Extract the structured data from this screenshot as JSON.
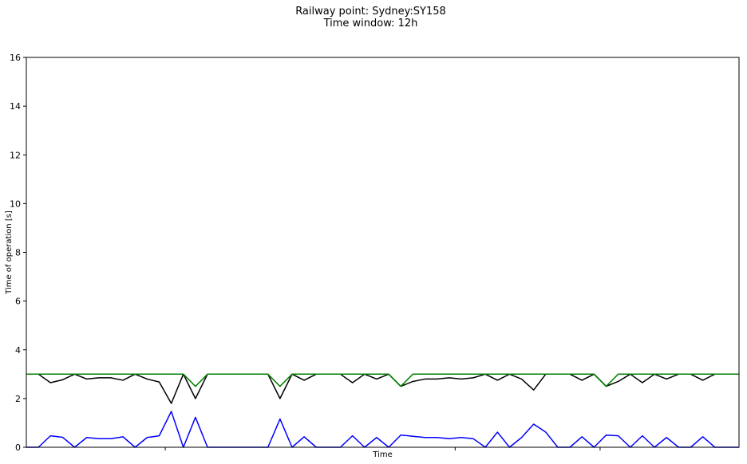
{
  "chart_data": {
    "type": "line",
    "title_lines": [
      "Railway point: Sydney:SY158",
      "Time window: 12h"
    ],
    "xlabel": "Time",
    "ylabel": "Time of operation [s]",
    "ylim": [
      0,
      16
    ],
    "yticks": [
      0,
      2,
      4,
      6,
      8,
      10,
      12,
      14,
      16
    ],
    "xlim": [
      0,
      59
    ],
    "xticks_unlabeled": [
      11.5,
      35.5,
      47.5
    ],
    "grid": false,
    "legend": "none",
    "x": [
      0,
      1,
      2,
      3,
      4,
      5,
      6,
      7,
      8,
      9,
      10,
      11,
      12,
      13,
      14,
      15,
      16,
      17,
      18,
      19,
      20,
      21,
      22,
      23,
      24,
      25,
      26,
      27,
      28,
      29,
      30,
      31,
      32,
      33,
      34,
      35,
      36,
      37,
      38,
      39,
      40,
      41,
      42,
      43,
      44,
      45,
      46,
      47,
      48,
      49,
      50,
      51,
      52,
      53,
      54,
      55,
      56,
      57,
      58,
      59
    ],
    "series": [
      {
        "color": "#000000",
        "values": [
          3.0,
          3.0,
          2.65,
          2.77,
          3.0,
          2.8,
          2.85,
          2.85,
          2.75,
          3.0,
          2.8,
          2.68,
          1.8,
          3.0,
          2.0,
          3.0,
          3.0,
          3.0,
          3.0,
          3.0,
          3.0,
          2.0,
          3.0,
          2.75,
          3.0,
          3.0,
          3.0,
          2.65,
          3.0,
          2.8,
          3.0,
          2.5,
          2.7,
          2.8,
          2.8,
          2.85,
          2.8,
          2.85,
          3.0,
          2.75,
          3.0,
          2.8,
          2.35,
          3.0,
          3.0,
          3.0,
          2.75,
          3.0,
          2.5,
          2.7,
          3.0,
          2.65,
          3.0,
          2.8,
          3.0,
          3.0,
          2.75,
          3.0,
          3.0,
          3.0
        ]
      },
      {
        "color": "#008000",
        "values": [
          3.0,
          3.0,
          3.0,
          3.0,
          3.0,
          3.0,
          3.0,
          3.0,
          3.0,
          3.0,
          3.0,
          3.0,
          3.0,
          3.0,
          2.5,
          3.0,
          3.0,
          3.0,
          3.0,
          3.0,
          3.0,
          2.5,
          3.0,
          3.0,
          3.0,
          3.0,
          3.0,
          3.0,
          3.0,
          3.0,
          3.0,
          2.5,
          3.0,
          3.0,
          3.0,
          3.0,
          3.0,
          3.0,
          3.0,
          3.0,
          3.0,
          3.0,
          3.0,
          3.0,
          3.0,
          3.0,
          3.0,
          3.0,
          2.5,
          3.0,
          3.0,
          3.0,
          3.0,
          3.0,
          3.0,
          3.0,
          3.0,
          3.0,
          3.0,
          3.0
        ]
      },
      {
        "color": "#0000ff",
        "values": [
          0.0,
          0.0,
          0.47,
          0.41,
          0.0,
          0.4,
          0.35,
          0.35,
          0.43,
          0.0,
          0.4,
          0.47,
          1.47,
          0.0,
          1.23,
          0.0,
          0.0,
          0.0,
          0.0,
          0.0,
          0.0,
          1.16,
          0.0,
          0.43,
          0.0,
          0.0,
          0.0,
          0.47,
          0.0,
          0.4,
          0.0,
          0.5,
          0.45,
          0.4,
          0.4,
          0.35,
          0.4,
          0.35,
          0.0,
          0.62,
          0.0,
          0.4,
          0.95,
          0.62,
          0.0,
          0.0,
          0.43,
          0.0,
          0.5,
          0.47,
          0.0,
          0.47,
          0.0,
          0.4,
          0.0,
          0.0,
          0.43,
          0.0,
          0.0,
          0.0
        ]
      }
    ]
  }
}
